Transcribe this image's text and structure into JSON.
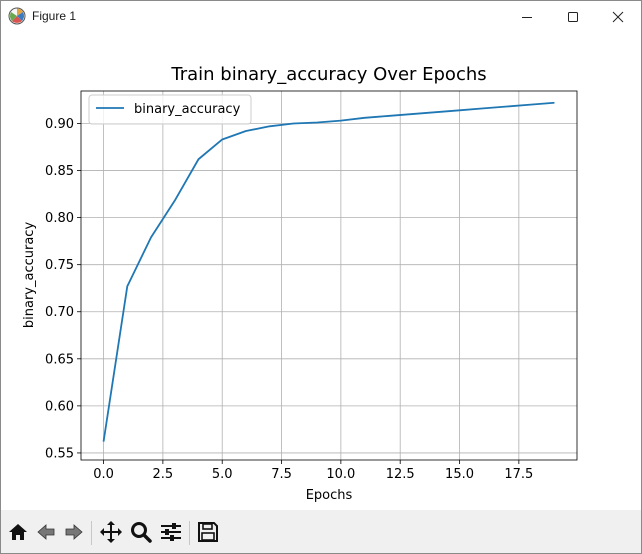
{
  "window": {
    "title": "Figure 1",
    "icons": {
      "app": "matplotlib-icon",
      "minimize": "minimize-icon",
      "maximize": "maximize-icon",
      "close": "close-icon"
    }
  },
  "toolbar": {
    "tools": [
      {
        "name": "home-icon"
      },
      {
        "name": "back-arrow-icon"
      },
      {
        "name": "forward-arrow-icon"
      },
      {
        "name": "pan-icon"
      },
      {
        "name": "zoom-icon"
      },
      {
        "name": "configure-subplots-icon"
      },
      {
        "name": "save-icon"
      }
    ]
  },
  "chart_data": {
    "type": "line",
    "title": "Train binary_accuracy Over Epochs",
    "xlabel": "Epochs",
    "ylabel": "binary_accuracy",
    "xlim": [
      -0.95,
      19.95
    ],
    "ylim": [
      0.5425,
      0.9345
    ],
    "xticks": [
      "0.0",
      "2.5",
      "5.0",
      "7.5",
      "10.0",
      "12.5",
      "15.0",
      "17.5"
    ],
    "yticks": [
      "0.55",
      "0.60",
      "0.65",
      "0.70",
      "0.75",
      "0.80",
      "0.85",
      "0.90"
    ],
    "grid": true,
    "legend_position": "upper-left",
    "colors": {
      "line": "#1f77b4",
      "grid": "#b0b0b0"
    },
    "series": [
      {
        "name": "binary_accuracy",
        "x": [
          0,
          1,
          2,
          3,
          4,
          5,
          6,
          7,
          8,
          9,
          10,
          11,
          12,
          13,
          14,
          15,
          16,
          17,
          18,
          19
        ],
        "values": [
          0.562,
          0.727,
          0.779,
          0.818,
          0.862,
          0.883,
          0.892,
          0.897,
          0.9,
          0.901,
          0.903,
          0.906,
          0.908,
          0.91,
          0.912,
          0.914,
          0.916,
          0.918,
          0.92,
          0.922
        ]
      }
    ]
  }
}
